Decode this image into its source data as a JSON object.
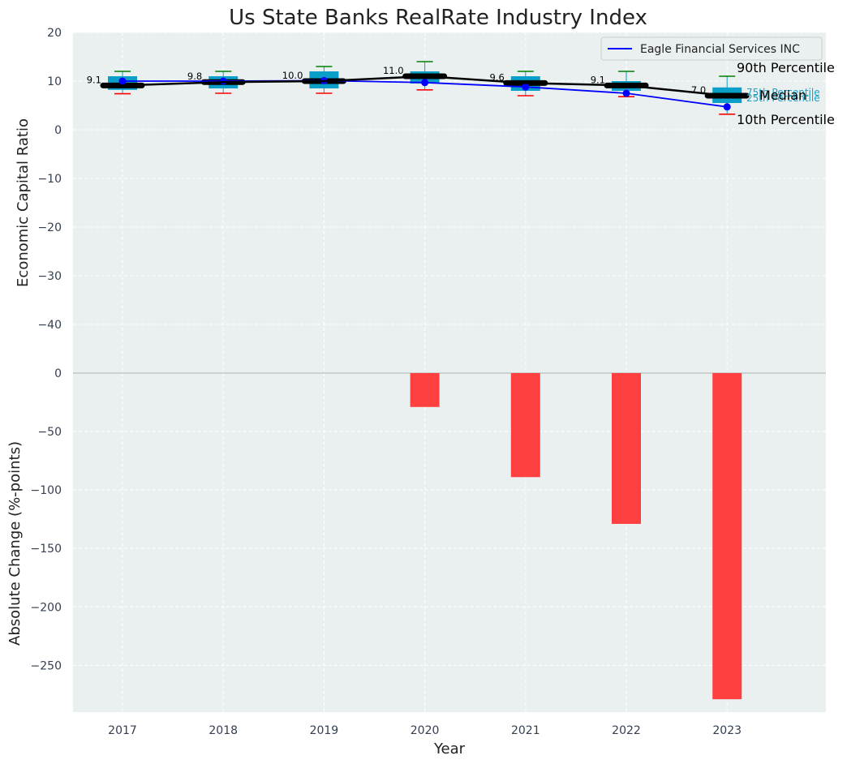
{
  "chart_data": [
    {
      "type": "box_line",
      "title": "Us State Banks RealRate Industry Index",
      "xlabel": "",
      "ylabel": "Economic Capital Ratio",
      "ylim": [
        -50,
        20
      ],
      "yticks": [
        20,
        10,
        0,
        -10,
        -20,
        -30,
        -40
      ],
      "ytick_labels": [
        "20",
        "10",
        "0",
        "−10",
        "−20",
        "−30",
        "−40"
      ],
      "categories": [
        "2017",
        "2018",
        "2019",
        "2020",
        "2021",
        "2022",
        "2023"
      ],
      "boxes": [
        {
          "p10": 7.4,
          "q1": 8.2,
          "median": 9.1,
          "q3": 11.0,
          "p90": 12.0
        },
        {
          "p10": 7.5,
          "q1": 8.5,
          "median": 9.8,
          "q3": 11.0,
          "p90": 12.0
        },
        {
          "p10": 7.5,
          "q1": 8.5,
          "median": 10.0,
          "q3": 12.0,
          "p90": 13.0
        },
        {
          "p10": 8.2,
          "q1": 9.5,
          "median": 11.0,
          "q3": 12.0,
          "p90": 14.0
        },
        {
          "p10": 7.0,
          "q1": 8.0,
          "median": 9.6,
          "q3": 11.0,
          "p90": 12.0
        },
        {
          "p10": 6.8,
          "q1": 8.0,
          "median": 9.1,
          "q3": 10.0,
          "p90": 12.0
        },
        {
          "p10": 3.2,
          "q1": 5.5,
          "median": 7.0,
          "q3": 8.7,
          "p90": 11.0
        }
      ],
      "median_labels": [
        "9.1",
        "9.8",
        "10.0",
        "11.0",
        "9.6",
        "9.1",
        "7.0"
      ],
      "series": [
        {
          "name": "Eagle Financial Services INC",
          "values": [
            10.0,
            10.0,
            10.1,
            9.7,
            8.8,
            7.5,
            4.7
          ],
          "color": "#0000ff"
        }
      ],
      "percentile_labels": {
        "p90": "90th Percentile",
        "q3": "75th Percentile",
        "median": "Median",
        "q1": "25th Percentile",
        "p10": "10th Percentile"
      },
      "legend_position": "top-right",
      "grid": true
    },
    {
      "type": "bar",
      "xlabel": "Year",
      "ylabel": "Absolute Change (%-points)",
      "ylim": [
        -290,
        0
      ],
      "yticks": [
        0,
        -50,
        -100,
        -150,
        -200,
        -250
      ],
      "ytick_labels": [
        "0",
        "−50",
        "−100",
        "−150",
        "−200",
        "−250"
      ],
      "categories": [
        "2017",
        "2018",
        "2019",
        "2020",
        "2021",
        "2022",
        "2023"
      ],
      "values": [
        0,
        0,
        0,
        -29,
        -89,
        -129,
        -279
      ],
      "grid": true
    }
  ],
  "colors": {
    "panel_bg": "#eaeff0",
    "box_fill": "#0a9fc9",
    "median_line": "#000000",
    "p90_whisker": "#008000",
    "p10_whisker": "#ff0000",
    "company_line": "#0000ff",
    "bar_fill": "#ff4040",
    "grid": "#ffffff",
    "tick_text": "#333f50"
  }
}
